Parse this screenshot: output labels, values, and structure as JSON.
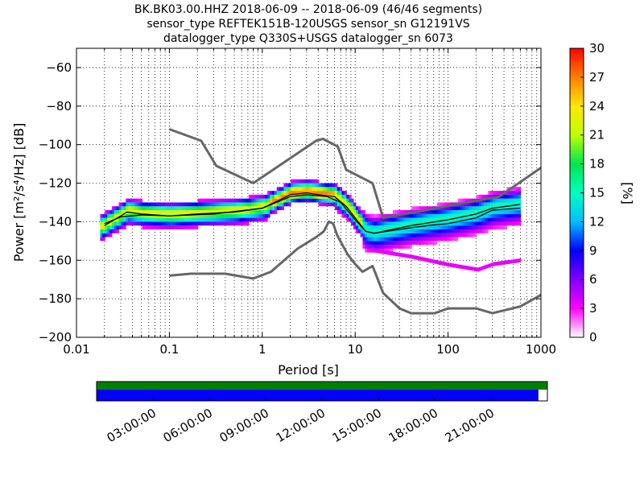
{
  "figure": {
    "title_lines": [
      "BK.BK03.00.HHZ   2018-06-09 -- 2018-06-09  (46/46 segments)",
      "sensor_type REFTEK151B-120USGS sensor_sn G12191VS",
      "datalogger_type Q330S+USGS datalogger_sn 6073"
    ]
  },
  "colorbar": {
    "label": "[%]",
    "min": 0,
    "max": 30,
    "ticks": [
      "0",
      "3",
      "6",
      "9",
      "12",
      "15",
      "18",
      "21",
      "24",
      "27",
      "30"
    ]
  },
  "timeline": {
    "tick_labels": [
      "03:00:00",
      "06:00:00",
      "09:00:00",
      "12:00:00",
      "15:00:00",
      "18:00:00",
      "21:00:00"
    ],
    "colors": {
      "top": "#008000",
      "bottom": "#0000ff",
      "gap": "#ffffff"
    },
    "data_coverage_fraction": 0.98
  },
  "chart_data": {
    "type": "heatmap",
    "title": "BK.BK03.00.HHZ   2018-06-09 -- 2018-06-09  (46/46 segments)",
    "subtitle": "sensor_type REFTEK151B-120USGS sensor_sn G12191VS / datalogger_type Q330S+USGS datalogger_sn 6073",
    "xlabel": "Period [s]",
    "ylabel": "Power [m²/s⁴/Hz] [dB]",
    "x_scale": "log",
    "xlim": [
      0.01,
      1000
    ],
    "ylim": [
      -200,
      -50
    ],
    "xticks": [
      0.01,
      0.1,
      1,
      10,
      100,
      1000
    ],
    "xtick_labels": [
      "0.01",
      "0.1",
      "1",
      "10",
      "100",
      "1000"
    ],
    "yticks": [
      -200,
      -180,
      -160,
      -140,
      -120,
      -100,
      -80,
      -60
    ],
    "ytick_labels": [
      "−200",
      "−180",
      "−160",
      "−140",
      "−120",
      "−100",
      "−80",
      "−60"
    ],
    "grid": "dotted vertical lines at each log-period subdivision",
    "series": [
      {
        "kind": "line",
        "color": "#666666",
        "points": [
          [
            0.1,
            -92
          ],
          [
            0.22,
            -98
          ],
          [
            0.32,
            -111
          ],
          [
            0.8,
            -120
          ],
          [
            3.8,
            -98
          ],
          [
            4.5,
            -97
          ],
          [
            6.5,
            -101
          ],
          [
            8,
            -113
          ],
          [
            15.4,
            -120
          ],
          [
            20,
            -138
          ],
          [
            354,
            -127
          ],
          [
            1000,
            -112
          ]
        ]
      },
      {
        "kind": "line",
        "color": "#666666",
        "points": [
          [
            0.1,
            -168
          ],
          [
            0.17,
            -167
          ],
          [
            0.4,
            -167
          ],
          [
            0.8,
            -169.5
          ],
          [
            1.24,
            -166
          ],
          [
            2.4,
            -154
          ],
          [
            3.8,
            -148
          ],
          [
            4.6,
            -145
          ],
          [
            5.2,
            -140
          ],
          [
            5.8,
            -141
          ],
          [
            6.4,
            -147
          ],
          [
            8.3,
            -157
          ],
          [
            10,
            -162
          ],
          [
            12,
            -166
          ],
          [
            15.4,
            -163
          ],
          [
            20,
            -177
          ],
          [
            30,
            -185
          ],
          [
            40,
            -187.5
          ],
          [
            72,
            -187.5
          ],
          [
            100,
            -185
          ],
          [
            200,
            -185
          ],
          [
            300,
            -187.5
          ],
          [
            600,
            -184
          ],
          [
            1000,
            -178
          ]
        ]
      },
      {
        "kind": "line",
        "color": "#000000",
        "name": "mode",
        "points": [
          [
            0.02,
            -142
          ],
          [
            0.03,
            -137
          ],
          [
            0.035,
            -135
          ],
          [
            0.05,
            -136
          ],
          [
            0.1,
            -137
          ],
          [
            0.2,
            -136
          ],
          [
            0.5,
            -135
          ],
          [
            1,
            -133
          ],
          [
            1.5,
            -129
          ],
          [
            2,
            -126
          ],
          [
            3,
            -125
          ],
          [
            4,
            -126
          ],
          [
            6,
            -127
          ],
          [
            8,
            -132
          ],
          [
            10,
            -138
          ],
          [
            13,
            -145
          ],
          [
            16,
            -146
          ],
          [
            20,
            -145
          ],
          [
            40,
            -142
          ],
          [
            100,
            -139
          ],
          [
            200,
            -136
          ],
          [
            300,
            -133
          ],
          [
            600,
            -131
          ]
        ]
      },
      {
        "kind": "line",
        "color": "#000000",
        "name": "mean",
        "points": [
          [
            0.02,
            -141
          ],
          [
            0.03,
            -137.5
          ],
          [
            0.05,
            -136.5
          ],
          [
            0.1,
            -137
          ],
          [
            0.3,
            -136
          ],
          [
            1,
            -133
          ],
          [
            2,
            -127
          ],
          [
            3,
            -126
          ],
          [
            5,
            -127
          ],
          [
            7,
            -130
          ],
          [
            10,
            -139
          ],
          [
            13,
            -145
          ],
          [
            16,
            -146
          ],
          [
            30,
            -144
          ],
          [
            60,
            -142
          ],
          [
            100,
            -141
          ],
          [
            200,
            -138
          ],
          [
            300,
            -134
          ],
          [
            600,
            -133
          ]
        ]
      }
    ],
    "density_percent_range": [
      0,
      30
    ]
  }
}
